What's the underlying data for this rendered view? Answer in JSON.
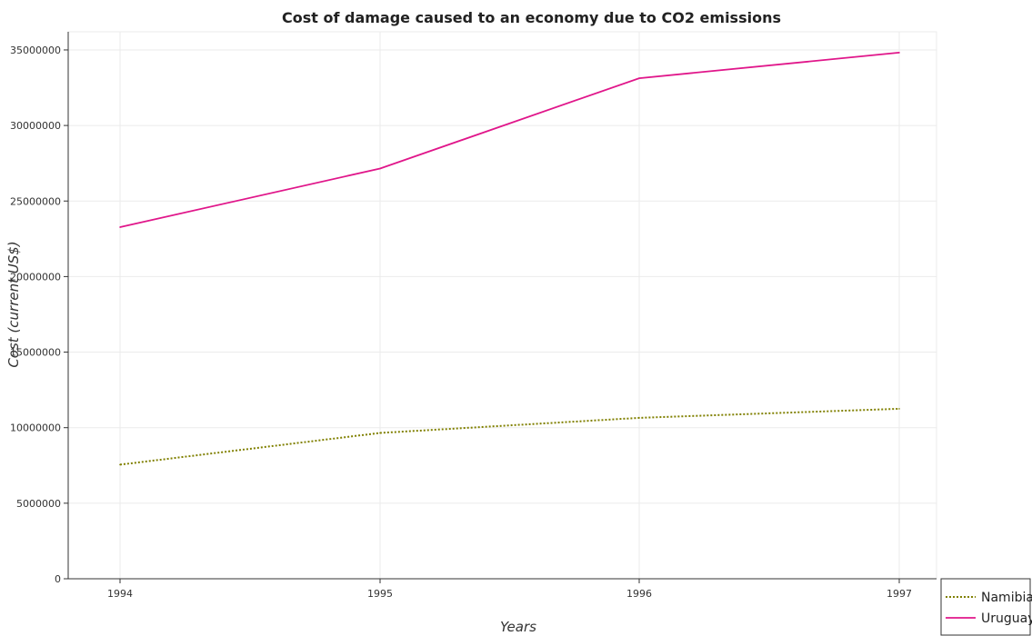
{
  "chart_data": {
    "type": "line",
    "title": "Cost of damage caused to an economy due to CO2 emissions",
    "xlabel": "Years",
    "ylabel": "Cost (current US$)",
    "categories": [
      "1994",
      "1995",
      "1996",
      "1997"
    ],
    "ylim": [
      0,
      36200000
    ],
    "yticks": [
      0,
      5000000,
      10000000,
      15000000,
      20000000,
      25000000,
      30000000,
      35000000
    ],
    "ytick_labels": [
      "0",
      "5000000",
      "10000000",
      "15000000",
      "20000000",
      "25000000",
      "30000000",
      "35000000"
    ],
    "grid": true,
    "legend_position": "bottom-right",
    "series": [
      {
        "name": "Namibia",
        "values": [
          7550000,
          9650000,
          10650000,
          11250000
        ],
        "color": "#808000",
        "style": "dotted"
      },
      {
        "name": "Uruguay",
        "values": [
          23270000,
          27150000,
          33130000,
          34820000
        ],
        "color": "#e0168a",
        "style": "solid"
      }
    ]
  }
}
